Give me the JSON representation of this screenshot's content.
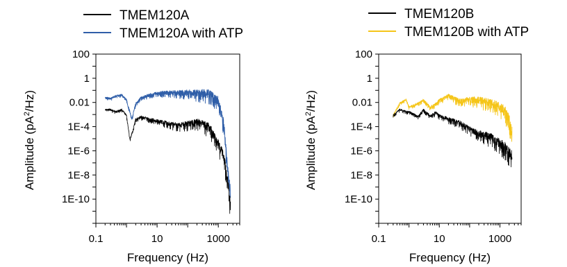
{
  "chart_data": [
    {
      "type": "line",
      "xlabel": "Frequency (Hz)",
      "ylabel_main": "Amplitude (pA",
      "ylabel_sup": "2",
      "ylabel_end": "/Hz)",
      "xscale": "log",
      "yscale": "log",
      "xlim": [
        0.1,
        5000
      ],
      "ylim": [
        1e-12,
        100
      ],
      "x_ticks": [
        {
          "value": 0.1,
          "label": "0.1"
        },
        {
          "value": 10,
          "label": "10"
        },
        {
          "value": 1000,
          "label": "1000"
        }
      ],
      "y_ticks": [
        {
          "value": 100,
          "label": "100"
        },
        {
          "value": 1,
          "label": "1"
        },
        {
          "value": 0.01,
          "label": "0.01"
        },
        {
          "value": 0.0001,
          "label": "1E-4"
        },
        {
          "value": 1e-06,
          "label": "1E-6"
        },
        {
          "value": 1e-08,
          "label": "1E-8"
        },
        {
          "value": 1e-10,
          "label": "1E-10"
        }
      ],
      "legend_position": "top",
      "series": [
        {
          "name": "TMEM120A with ATP",
          "color": "#2f5ea8",
          "x": [
            0.2,
            0.3,
            0.45,
            0.7,
            1,
            1.5,
            2,
            3,
            5,
            10,
            20,
            50,
            100,
            200,
            500,
            1000,
            1500,
            2000,
            2500
          ],
          "y": [
            0.03,
            0.025,
            0.04,
            0.05,
            0.02,
            0.0005,
            0.01,
            0.03,
            0.05,
            0.08,
            0.1,
            0.1,
            0.12,
            0.12,
            0.12,
            0.03,
            0.0005,
            1e-07,
            1e-09
          ]
        },
        {
          "name": "TMEM120A",
          "color": "#000000",
          "x": [
            0.2,
            0.3,
            0.45,
            0.7,
            1,
            1.3,
            1.7,
            2,
            3,
            5,
            10,
            20,
            50,
            100,
            200,
            500,
            1000,
            1500,
            2000,
            2500
          ],
          "y": [
            0.003,
            0.003,
            0.002,
            0.003,
            0.001,
            1e-05,
            0.0001,
            0.0005,
            0.0008,
            0.0006,
            0.0004,
            0.0003,
            0.0002,
            0.0003,
            0.0005,
            0.0002,
            1e-05,
            1e-06,
            1e-08,
            1e-10
          ]
        }
      ]
    },
    {
      "type": "line",
      "xlabel": "Frequency (Hz)",
      "ylabel_main": "Amplitude (pA",
      "ylabel_sup": "2",
      "ylabel_end": "/Hz)",
      "xscale": "log",
      "yscale": "log",
      "xlim": [
        0.1,
        5000
      ],
      "ylim": [
        1e-12,
        100
      ],
      "x_ticks": [
        {
          "value": 0.1,
          "label": "0.1"
        },
        {
          "value": 10,
          "label": "10"
        },
        {
          "value": 1000,
          "label": "1000"
        }
      ],
      "y_ticks": [
        {
          "value": 100,
          "label": "100"
        },
        {
          "value": 1,
          "label": "1"
        },
        {
          "value": 0.01,
          "label": "0.01"
        },
        {
          "value": 0.0001,
          "label": "1E-4"
        },
        {
          "value": 1e-06,
          "label": "1E-6"
        },
        {
          "value": 1e-08,
          "label": "1E-8"
        },
        {
          "value": 1e-10,
          "label": "1E-10"
        }
      ],
      "legend_position": "top",
      "series": [
        {
          "name": "TMEM120B with ATP",
          "color": "#f5c518",
          "x": [
            0.3,
            0.5,
            0.8,
            1,
            2,
            3,
            5,
            8,
            10,
            20,
            50,
            100,
            200,
            500,
            1000,
            1500,
            2000,
            2500
          ],
          "y": [
            0.001,
            0.01,
            0.02,
            0.005,
            0.01,
            0.02,
            0.005,
            0.01,
            0.02,
            0.05,
            0.02,
            0.03,
            0.03,
            0.02,
            0.01,
            0.005,
            0.001,
            0.0001
          ]
        },
        {
          "name": "TMEM120B",
          "color": "#000000",
          "x": [
            0.3,
            0.5,
            0.8,
            1,
            2,
            3,
            5,
            8,
            10,
            20,
            50,
            100,
            200,
            500,
            1000,
            1500,
            2000,
            2500
          ],
          "y": [
            0.001,
            0.003,
            0.002,
            0.002,
            0.0008,
            0.003,
            0.001,
            0.002,
            0.001,
            0.0006,
            0.0003,
            0.0001,
            5e-05,
            3e-05,
            1e-05,
            5e-06,
            2e-06,
            1e-06
          ]
        }
      ]
    }
  ]
}
